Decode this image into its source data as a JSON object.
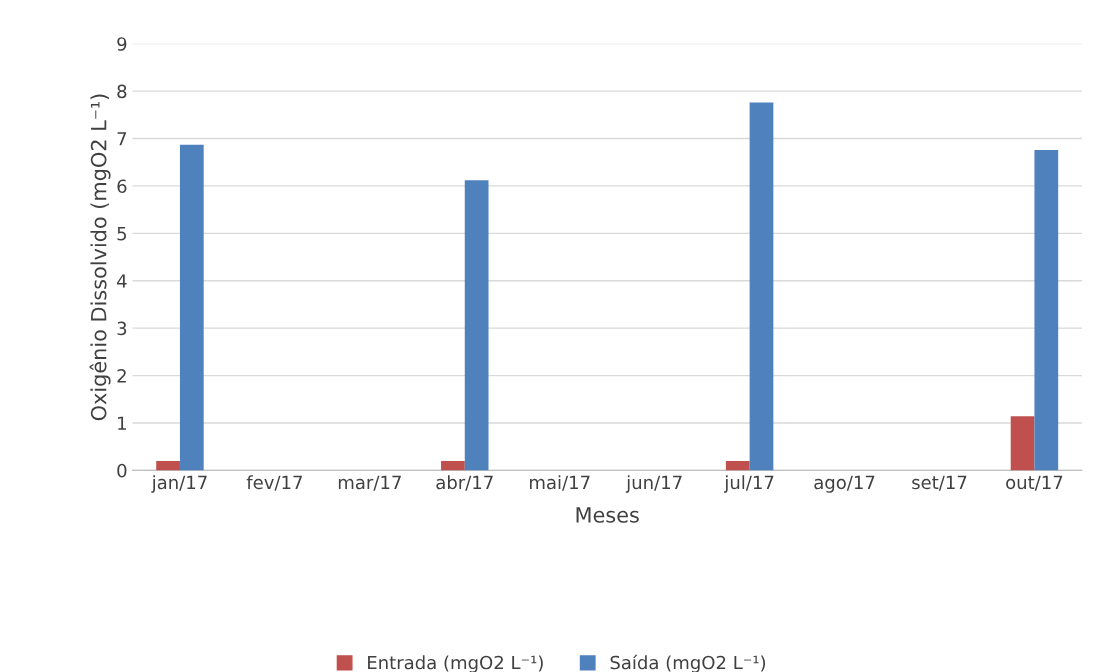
{
  "chart_data": {
    "type": "bar",
    "xlabel": "Meses",
    "ylabel": "Oxigênio Dissolvido (mgO2 L⁻¹)",
    "categories": [
      "jan/17",
      "fev/17",
      "mar/17",
      "abr/17",
      "mai/17",
      "jun/17",
      "jul/17",
      "ago/17",
      "set/17",
      "out/17"
    ],
    "series": [
      {
        "name": "Entrada (mgO2 L⁻¹)",
        "color": "#c0504d",
        "values": [
          0.2,
          null,
          null,
          0.2,
          null,
          null,
          0.2,
          null,
          null,
          1.14
        ]
      },
      {
        "name": "Saída (mgO2 L⁻¹)",
        "color": "#4f81bd",
        "values": [
          6.87,
          null,
          null,
          6.12,
          null,
          null,
          7.76,
          null,
          null,
          6.76
        ]
      }
    ],
    "ylim": [
      0,
      9
    ],
    "yticks": [
      0,
      1,
      2,
      3,
      4,
      5,
      6,
      7,
      8,
      9
    ],
    "grid": "y",
    "legend": "bottom"
  }
}
